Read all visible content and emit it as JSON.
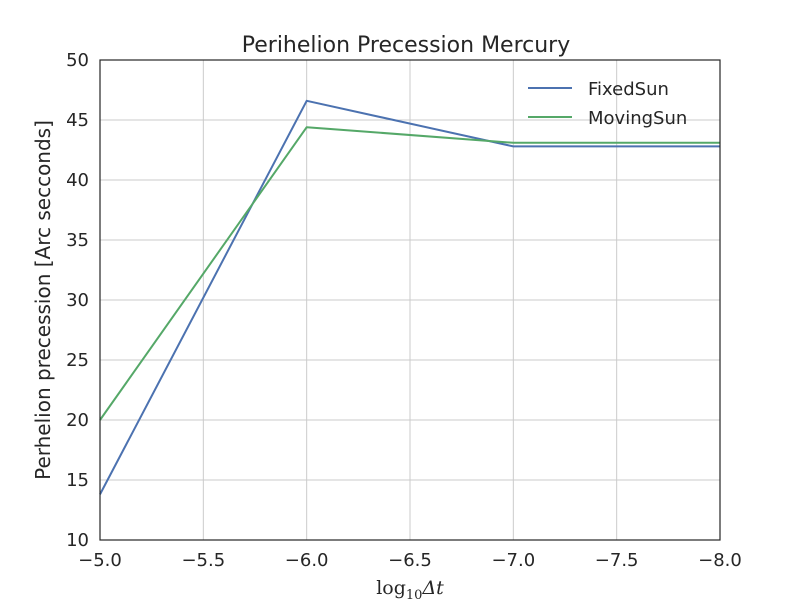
{
  "chart_data": {
    "type": "line",
    "title": "Perihelion Precession Mercury",
    "xlabel_base": "log",
    "xlabel_sub": "10",
    "xlabel_rest": "Δt",
    "ylabel": "Perhelion precession [Arc secconds]",
    "xlim": [
      -5.0,
      -8.0
    ],
    "ylim": [
      10,
      50
    ],
    "x_ticks": [
      -5.0,
      -5.5,
      -6.0,
      -6.5,
      -7.0,
      -7.5,
      -8.0
    ],
    "x_tick_labels": [
      "−5.0",
      "−5.5",
      "−6.0",
      "−6.5",
      "−7.0",
      "−7.5",
      "−8.0"
    ],
    "y_ticks": [
      10,
      15,
      20,
      25,
      30,
      35,
      40,
      45,
      50
    ],
    "y_tick_labels": [
      "10",
      "15",
      "20",
      "25",
      "30",
      "35",
      "40",
      "45",
      "50"
    ],
    "grid": true,
    "legend_position": "top-right",
    "x": [
      -5.0,
      -6.0,
      -7.0,
      -8.0
    ],
    "series": [
      {
        "name": "FixedSun",
        "color": "#4c72b0",
        "values": [
          13.8,
          46.6,
          42.8,
          42.8
        ]
      },
      {
        "name": "MovingSun",
        "color": "#55a868",
        "values": [
          20.0,
          44.4,
          43.1,
          43.1
        ]
      }
    ]
  }
}
